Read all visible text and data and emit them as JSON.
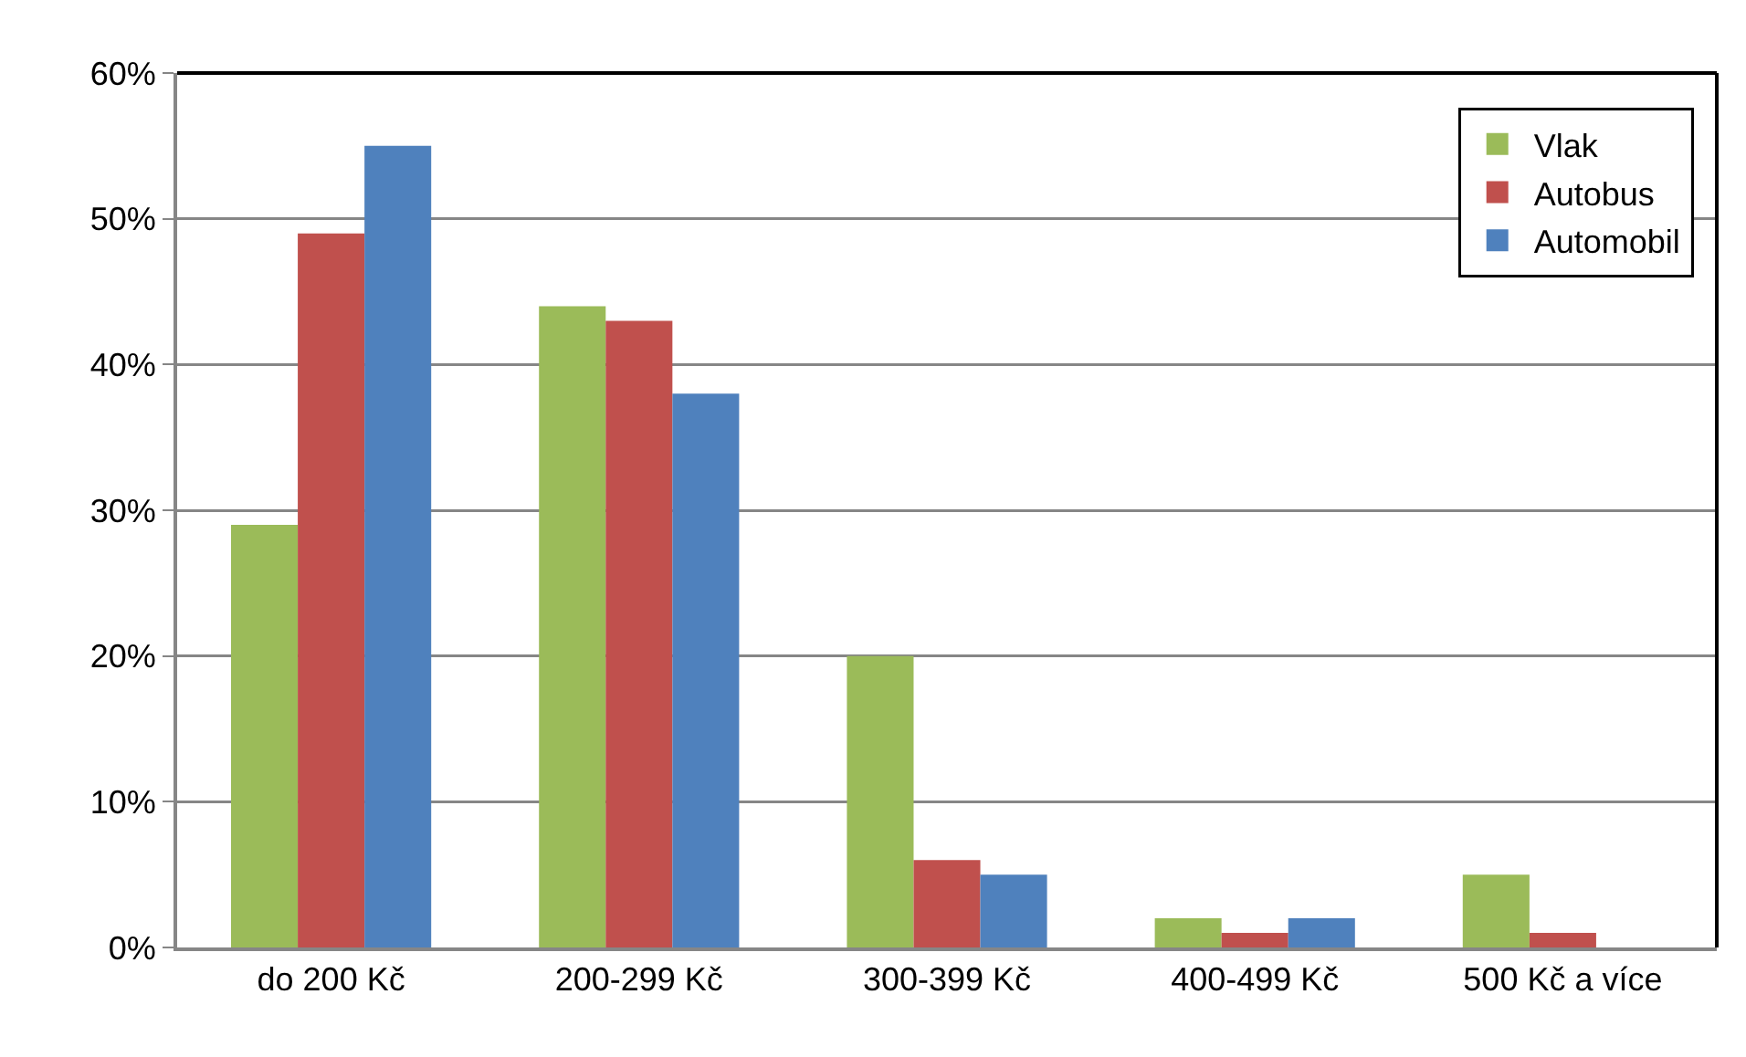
{
  "chart_data": {
    "type": "bar",
    "categories": [
      "do 200 Kč",
      "200-299 Kč",
      "300-399 Kč",
      "400-499 Kč",
      "500 Kč a více"
    ],
    "series": [
      {
        "name": "Vlak",
        "color": "#9bbb59",
        "values": [
          29,
          44,
          20,
          2,
          5
        ]
      },
      {
        "name": "Autobus",
        "color": "#c0504d",
        "values": [
          49,
          43,
          6,
          1,
          1
        ]
      },
      {
        "name": "Automobil",
        "color": "#4f81bd",
        "values": [
          55,
          38,
          5,
          2,
          0
        ]
      }
    ],
    "ylim": [
      0,
      60
    ],
    "yticks": [
      {
        "value": 0,
        "label": "0%"
      },
      {
        "value": 10,
        "label": "10%"
      },
      {
        "value": 20,
        "label": "20%"
      },
      {
        "value": 30,
        "label": "30%"
      },
      {
        "value": 40,
        "label": "40%"
      },
      {
        "value": 50,
        "label": "50%"
      },
      {
        "value": 60,
        "label": "60%"
      }
    ],
    "grid": "y",
    "legend": "top right"
  }
}
